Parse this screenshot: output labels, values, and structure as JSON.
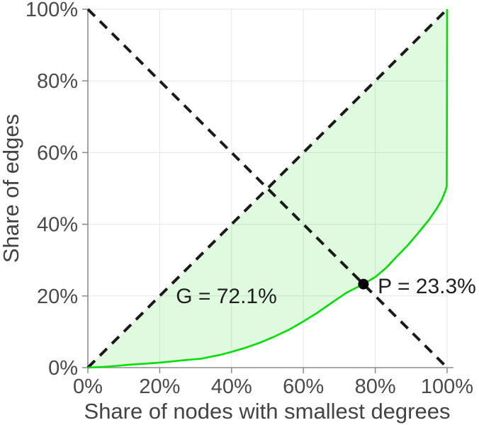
{
  "figure": {
    "background": "#ffffff"
  },
  "chart_data": {
    "type": "line",
    "title": "",
    "xlabel": "Share of nodes with smallest degrees",
    "ylabel": "Share of edges",
    "xlim": [
      0,
      100
    ],
    "ylim": [
      0,
      100
    ],
    "grid": true,
    "legend": "none",
    "x_ticks": {
      "values": [
        0,
        20,
        40,
        60,
        80,
        100
      ],
      "labels": [
        "0%",
        "20%",
        "40%",
        "60%",
        "80%",
        "100%"
      ]
    },
    "y_ticks": {
      "values": [
        0,
        20,
        40,
        60,
        80,
        100
      ],
      "labels": [
        "0%",
        "20%",
        "40%",
        "60%",
        "80%",
        "100%"
      ]
    },
    "series": [
      {
        "name": "lorenz-curve",
        "style": "solid",
        "color": "#00e000",
        "fill": "rgba(0,215,0,0.12)",
        "points": [
          [
            0,
            0
          ],
          [
            4,
            0.2
          ],
          [
            8,
            0.5
          ],
          [
            12,
            0.85
          ],
          [
            16,
            1.1
          ],
          [
            20,
            1.4
          ],
          [
            24,
            1.8
          ],
          [
            28,
            2.2
          ],
          [
            31.6,
            2.5
          ],
          [
            34,
            3.0
          ],
          [
            37,
            3.6
          ],
          [
            40,
            4.4
          ],
          [
            44,
            5.6
          ],
          [
            48,
            7.0
          ],
          [
            52,
            8.7
          ],
          [
            56,
            10.6
          ],
          [
            60,
            12.9
          ],
          [
            64,
            15.4
          ],
          [
            68,
            18.2
          ],
          [
            72,
            20.9
          ],
          [
            76.7,
            23.3
          ],
          [
            80,
            25.3
          ],
          [
            83,
            27.8
          ],
          [
            86,
            31.0
          ],
          [
            89,
            34.1
          ],
          [
            92,
            37.6
          ],
          [
            95,
            41.3
          ],
          [
            97,
            44.2
          ],
          [
            98.5,
            46.8
          ],
          [
            99.5,
            49.3
          ],
          [
            99.9,
            50.6
          ],
          [
            100,
            100
          ]
        ]
      },
      {
        "name": "equality-diagonal",
        "style": "dashed",
        "color": "#1a1a1a",
        "points": [
          [
            0,
            0
          ],
          [
            100,
            100
          ]
        ]
      },
      {
        "name": "anti-diagonal",
        "style": "dashed",
        "color": "#1a1a1a",
        "points": [
          [
            0,
            100
          ],
          [
            100,
            0
          ]
        ]
      }
    ],
    "marker": {
      "x": 76.7,
      "y": 23.3,
      "color": "#000000",
      "radius": 7.5
    },
    "annotations": [
      {
        "id": "gini",
        "text": "G = 72.1%",
        "x": 24.5,
        "y": 20.2,
        "anchor": "start"
      },
      {
        "id": "pivot",
        "text": "P = 23.3%",
        "x": 80.7,
        "y": 22.9,
        "anchor": "start"
      }
    ],
    "gini_percent": 72.1,
    "pivot_percent": 23.3
  },
  "colors": {
    "grid": "#e6e6e6",
    "axis": "#8c8c8c",
    "tick_label": "#4a4a4a",
    "axis_title": "#434343",
    "annotation": "#1f1f1f",
    "curve": "#00e000",
    "area_fill": "rgba(0,215,0,0.12)",
    "dashed_line": "#1a1a1a",
    "marker": "#000000"
  }
}
